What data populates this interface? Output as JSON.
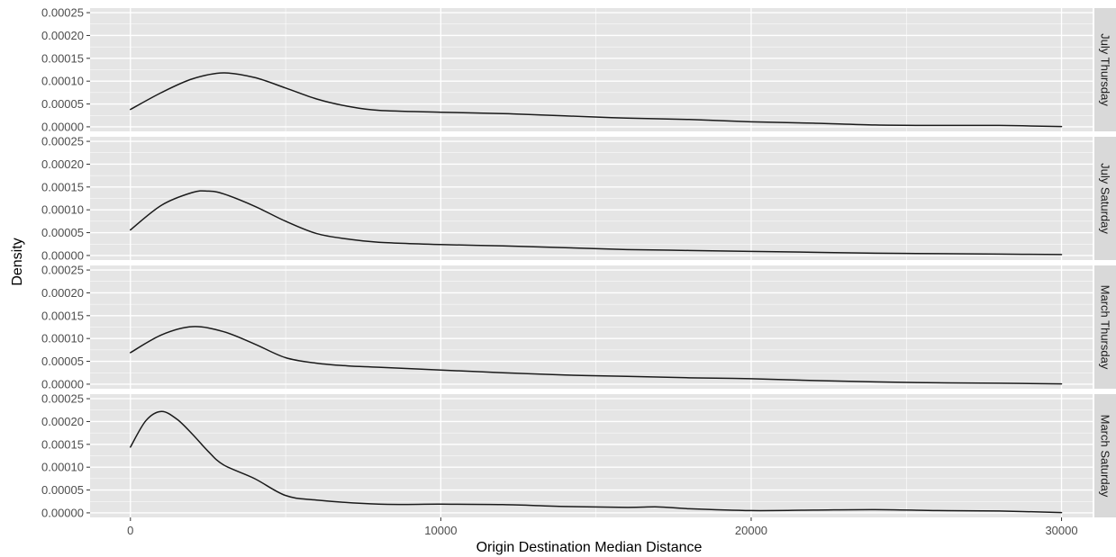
{
  "chart_data": {
    "type": "line",
    "chart_kind": "faceted density plot",
    "xlabel": "Origin Destination Median Distance",
    "ylabel": "Density",
    "xlim": [
      -1300,
      31000
    ],
    "ylim": [
      -1e-05,
      0.00026
    ],
    "x_ticks": [
      0,
      10000,
      20000,
      30000
    ],
    "x_tick_labels": [
      "0",
      "10000",
      "20000",
      "30000"
    ],
    "y_ticks": [
      0,
      5e-05,
      0.0001,
      0.00015,
      0.0002,
      0.00025
    ],
    "y_tick_labels": [
      "0.00000",
      "0.00005",
      "0.00010",
      "0.00015",
      "0.00020",
      "0.00025"
    ],
    "grid": true,
    "legend": "none",
    "facet_position": "right",
    "colors": {
      "panel_background": "#e5e5e5",
      "gridline": "#ffffff",
      "strip_background": "#d9d9d9",
      "line": "#1a1a1a"
    },
    "panels": [
      {
        "label": "July Thursday",
        "x": [
          0,
          1000,
          2000,
          3000,
          4000,
          5000,
          6000,
          7000,
          8000,
          10000,
          12000,
          14000,
          16000,
          18000,
          20000,
          22000,
          24000,
          26000,
          28000,
          30000
        ],
        "values": [
          3.8e-05,
          7.5e-05,
          0.000105,
          0.000118,
          0.000108,
          8.5e-05,
          6.1e-05,
          4.5e-05,
          3.6e-05,
          3.2e-05,
          2.9e-05,
          2.4e-05,
          1.9e-05,
          1.6e-05,
          1.1e-05,
          8e-06,
          4e-06,
          3e-06,
          3e-06,
          5e-07
        ]
      },
      {
        "label": "July Saturday",
        "x": [
          0,
          1000,
          2000,
          2500,
          3000,
          4000,
          5000,
          6000,
          7000,
          8000,
          10000,
          12000,
          14000,
          16000,
          18000,
          20000,
          22000,
          24000,
          26000,
          28000,
          30000
        ],
        "values": [
          5.6e-05,
          0.00011,
          0.000138,
          0.000141,
          0.000135,
          0.000108,
          7.5e-05,
          4.8e-05,
          3.6e-05,
          2.9e-05,
          2.4e-05,
          2.1e-05,
          1.7e-05,
          1.3e-05,
          1.1e-05,
          9e-06,
          7e-06,
          5e-06,
          4e-06,
          3e-06,
          2e-06
        ]
      },
      {
        "label": "March Thursday",
        "x": [
          0,
          1000,
          2000,
          3000,
          4000,
          5000,
          6000,
          7000,
          8000,
          10000,
          12000,
          14000,
          16000,
          18000,
          20000,
          22000,
          24000,
          26000,
          28000,
          30000
        ],
        "values": [
          6.9e-05,
          0.000108,
          0.000126,
          0.000115,
          8.8e-05,
          5.8e-05,
          4.6e-05,
          4e-05,
          3.7e-05,
          3.1e-05,
          2.5e-05,
          2e-05,
          1.7e-05,
          1.4e-05,
          1.2e-05,
          8e-06,
          5e-06,
          3e-06,
          2e-06,
          5e-07
        ]
      },
      {
        "label": "March Saturday",
        "x": [
          0,
          500,
          1000,
          1500,
          2000,
          2500,
          3000,
          4000,
          5000,
          6000,
          8000,
          10000,
          12000,
          14000,
          16000,
          17000,
          18000,
          20000,
          22000,
          24000,
          26000,
          28000,
          30000
        ],
        "values": [
          0.000144,
          0.000202,
          0.000222,
          0.000205,
          0.000172,
          0.000135,
          0.000105,
          7.5e-05,
          3.8e-05,
          2.8e-05,
          1.9e-05,
          1.9e-05,
          1.8e-05,
          1.4e-05,
          1.2e-05,
          1.3e-05,
          9e-06,
          5e-06,
          6e-06,
          7e-06,
          5e-06,
          4e-06,
          5e-07
        ]
      }
    ]
  }
}
